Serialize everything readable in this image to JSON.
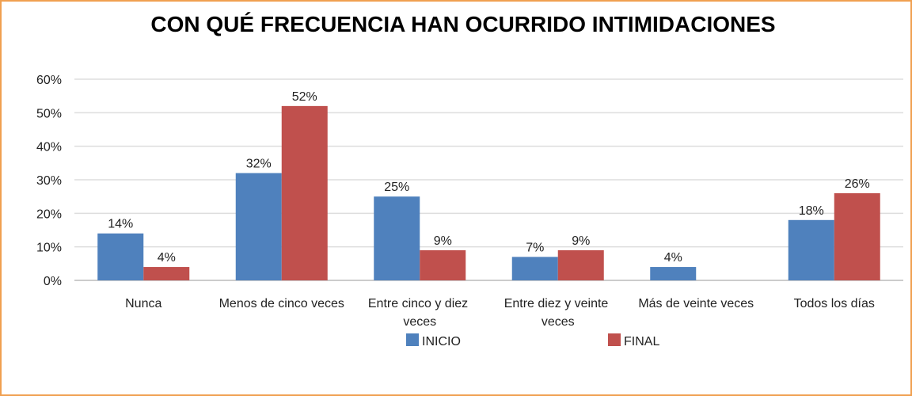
{
  "chart_data": {
    "type": "bar",
    "title": "CON QUÉ FRECUENCIA HAN OCURRIDO INTIMIDACIONES",
    "categories": [
      "Nunca",
      "Menos de cinco veces",
      "Entre cinco y diez veces",
      "Entre diez y veinte veces",
      "Más de veinte veces",
      "Todos los días"
    ],
    "series": [
      {
        "name": "INICIO",
        "color": "#4f81bd",
        "values": [
          14,
          32,
          25,
          7,
          4,
          18
        ],
        "value_labels": [
          "14%",
          "32%",
          "25%",
          "7%",
          "4%",
          "18%"
        ]
      },
      {
        "name": "FINAL",
        "color": "#c0504d",
        "values": [
          4,
          52,
          9,
          9,
          null,
          26
        ],
        "value_labels": [
          "4%",
          "52%",
          "9%",
          "9%",
          null,
          "26%"
        ]
      }
    ],
    "ylim": [
      0,
      60
    ],
    "yticks": [
      {
        "value": 0,
        "label": "0%"
      },
      {
        "value": 10,
        "label": "10%"
      },
      {
        "value": 20,
        "label": "20%"
      },
      {
        "value": 30,
        "label": "30%"
      },
      {
        "value": 40,
        "label": "40%"
      },
      {
        "value": 50,
        "label": "50%"
      },
      {
        "value": 60,
        "label": "60%"
      }
    ],
    "grid": true,
    "legend": "bottom"
  }
}
